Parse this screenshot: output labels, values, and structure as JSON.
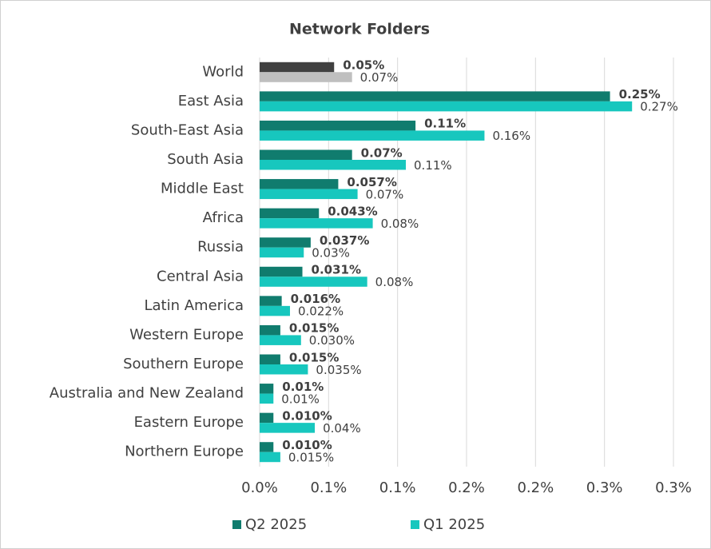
{
  "chart_data": {
    "type": "hbar",
    "title": "Network Folders",
    "categories": [
      "World",
      "East Asia",
      "South-East Asia",
      "South Asia",
      "Middle East",
      "Africa",
      "Russia",
      "Central Asia",
      "Latin America",
      "Western Europe",
      "Southern Europe",
      "Australia and New Zealand",
      "Eastern Europe",
      "Northern Europe"
    ],
    "series": [
      {
        "name": "Q2 2025",
        "color": "#107c6e",
        "colors": [
          "#404040",
          "#107c6e",
          "#107c6e",
          "#107c6e",
          "#107c6e",
          "#107c6e",
          "#107c6e",
          "#107c6e",
          "#107c6e",
          "#107c6e",
          "#107c6e",
          "#107c6e",
          "#107c6e",
          "#107c6e"
        ],
        "values": [
          0.054,
          0.254,
          0.113,
          0.067,
          0.057,
          0.043,
          0.037,
          0.031,
          0.016,
          0.015,
          0.015,
          0.01,
          0.01,
          0.01
        ],
        "value_labels": [
          "0.05%",
          "0.25%",
          "0.11%",
          "0.07%",
          "0.057%",
          "0.043%",
          "0.037%",
          "0.031%",
          "0.016%",
          "0.015%",
          "0.015%",
          "0.01%",
          "0.010%",
          "0.010%"
        ]
      },
      {
        "name": "Q1 2025",
        "color": "#17c7be",
        "colors": [
          "#bfbfbf",
          "#17c7be",
          "#17c7be",
          "#17c7be",
          "#17c7be",
          "#17c7be",
          "#17c7be",
          "#17c7be",
          "#17c7be",
          "#17c7be",
          "#17c7be",
          "#17c7be",
          "#17c7be",
          "#17c7be"
        ],
        "values": [
          0.067,
          0.27,
          0.163,
          0.106,
          0.071,
          0.082,
          0.032,
          0.078,
          0.022,
          0.03,
          0.035,
          0.01,
          0.04,
          0.015
        ],
        "value_labels": [
          "0.07%",
          "0.27%",
          "0.16%",
          "0.11%",
          "0.07%",
          "0.08%",
          "0.03%",
          "0.08%",
          "0.022%",
          "0.030%",
          "0.035%",
          "0.01%",
          "0.04%",
          "0.015%"
        ]
      }
    ],
    "xlim": [
      0,
      0.3
    ],
    "xticks": [
      {
        "value": 0,
        "label": "0.0%"
      },
      {
        "value": 0.05,
        "label": "0.1%"
      },
      {
        "value": 0.1,
        "label": "0.1%"
      },
      {
        "value": 0.15,
        "label": "0.2%"
      },
      {
        "value": 0.2,
        "label": "0.2%"
      },
      {
        "value": 0.25,
        "label": "0.3%"
      },
      {
        "value": 0.3,
        "label": "0.3%"
      }
    ],
    "grid": true,
    "legend": "bottom"
  }
}
